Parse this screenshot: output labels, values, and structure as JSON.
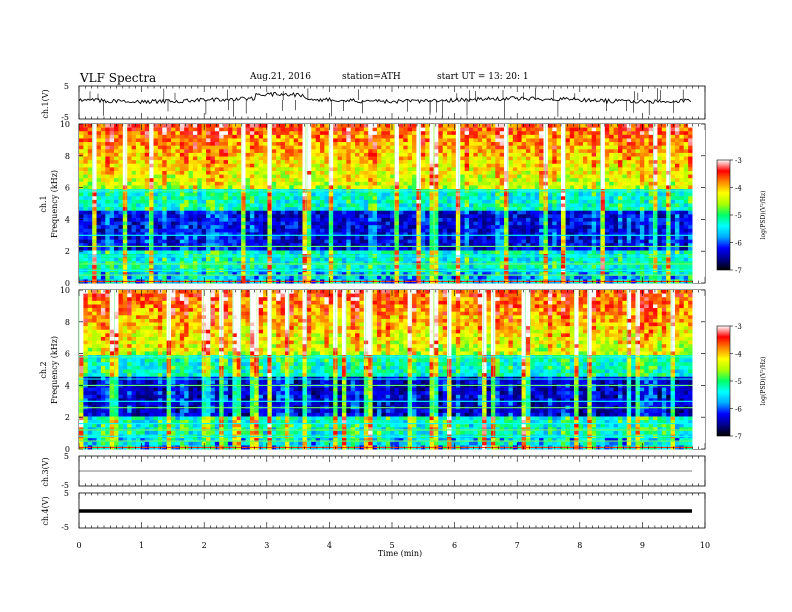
{
  "header": {
    "title": "VLF  Spectra",
    "date": "Aug.21, 2016",
    "station": "station=ATH",
    "start": "start  UT  =   13: 20: 1"
  },
  "colorbar": {
    "label": "log(PSD)(V²/Hz)",
    "ticks": [
      "-3",
      "-4",
      "-5",
      "-6",
      "-7"
    ],
    "stops": [
      "#000000",
      "#00008b",
      "#0000ff",
      "#00aaff",
      "#00ffff",
      "#00ff66",
      "#aaff00",
      "#ffff00",
      "#ff8800",
      "#ff0000",
      "#ffffff"
    ]
  },
  "chart_data": [
    {
      "type": "line",
      "panel": "ch.1",
      "ylabel": "ch.1(V)",
      "yticks": [
        "5",
        "-5"
      ],
      "ylim": [
        -5,
        5
      ],
      "xlim": [
        0,
        10
      ],
      "approx_level_v": 0.0,
      "note_values": "noisy waveform around ~0 V"
    },
    {
      "type": "heatmap",
      "panel": "ch.1 spectrogram",
      "ylabel_lines": [
        "ch.1",
        "Frequency  (kHz)"
      ],
      "yticks": [
        "10",
        "8",
        "6",
        "4",
        "2",
        "0"
      ],
      "ylim": [
        0,
        10
      ],
      "xlim": [
        0,
        9.8
      ],
      "zlim": [
        -7,
        -3
      ],
      "band_lines_khz": [
        5.8,
        3.0,
        2.3,
        1.7,
        1.2,
        0.8,
        0.5,
        0.1
      ]
    },
    {
      "type": "heatmap",
      "panel": "ch.2 spectrogram",
      "ylabel_lines": [
        "ch.2",
        "Frequency  (kHz)"
      ],
      "yticks": [
        "10",
        "8",
        "6",
        "4",
        "2",
        "0"
      ],
      "ylim": [
        0,
        10
      ],
      "xlim": [
        0,
        9.8
      ],
      "zlim": [
        -7,
        -3
      ],
      "band_lines_khz": [
        5.8,
        4.4,
        4.0,
        3.0,
        2.6,
        1.6,
        1.2,
        0.8,
        0.5,
        0.1
      ]
    },
    {
      "type": "line",
      "panel": "ch.3",
      "ylabel": "ch.3(V)",
      "yticks": [
        "5",
        "-5"
      ],
      "ylim": [
        -5,
        5
      ],
      "xlim": [
        0,
        10
      ],
      "approx_level_v": 0.0
    },
    {
      "type": "line",
      "panel": "ch.4",
      "ylabel": "ch.4(V)",
      "yticks": [
        "5",
        "-5"
      ],
      "ylim": [
        -5,
        5
      ],
      "xlim": [
        0,
        10
      ],
      "approx_level_v": 0.0
    }
  ],
  "xaxis": {
    "label": "Time  (min)",
    "ticks": [
      "0",
      "1",
      "2",
      "3",
      "4",
      "5",
      "6",
      "7",
      "8",
      "9",
      "10"
    ]
  }
}
